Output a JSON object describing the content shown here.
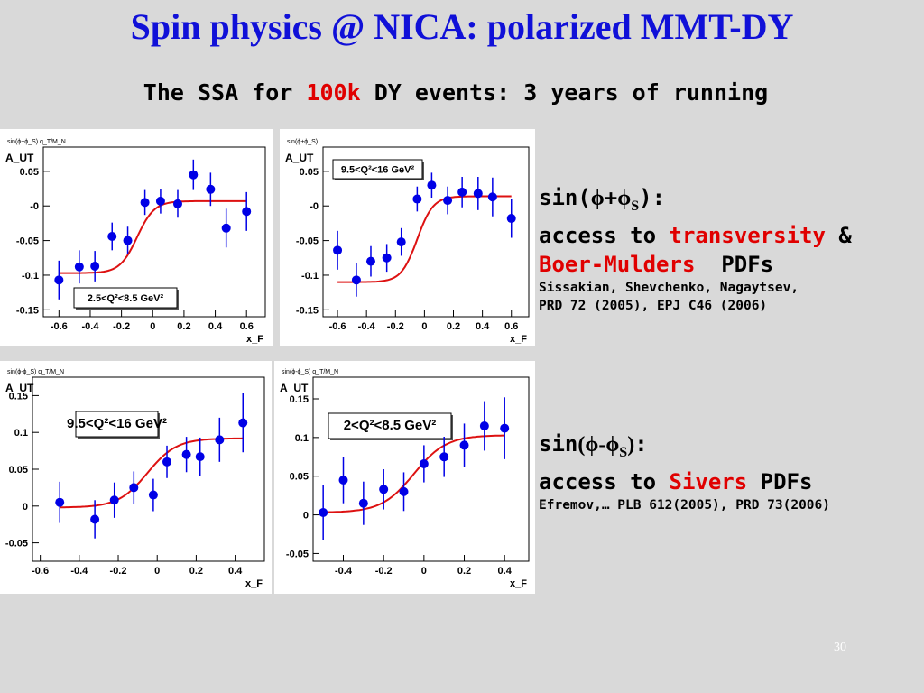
{
  "slide": {
    "title": "Spin physics @ NICA: polarized MMT-DY",
    "subtitle_pre": "The SSA for ",
    "subtitle_hl": "100k",
    "subtitle_post": " DY events: 3 years of running",
    "page_number": "30"
  },
  "note1": {
    "label_pre": "sin(",
    "phi": "ϕ",
    "plus": "+",
    "phi_s_base": "ϕ",
    "phi_s_sub": "S",
    "label_post": "):",
    "line2_pre": "access to ",
    "line2_hl": "transversity",
    "line2_post": " &",
    "line3_hl": "Boer-Mulders",
    "line3_post": "  PDFs",
    "ref1": "Sissakian, Shevchenko, Nagaytsev,",
    "ref2": "PRD 72 (2005), EPJ C46 (2006)"
  },
  "note2": {
    "label_pre": "sin",
    "label_mid": "(ϕ-ϕ",
    "label_sub": "S",
    "label_close": ")",
    "label_colon": ":",
    "line2_pre": "access to ",
    "line2_hl": "Sivers",
    "line2_post": " PDFs",
    "ref1": "Efremov,… PLB 612(2005), PRD 73(2006)"
  },
  "colors": {
    "title": "#1010d8",
    "highlight": "#e00000",
    "marker": "#0000e6",
    "fit": "#dd1111",
    "background": "#d9d9d9"
  },
  "chart_data": [
    {
      "type": "scatter",
      "weight_label": "sin(ϕ+ϕ_S) q_T/M_N",
      "ylabel": "A_UT",
      "xlabel": "x_F",
      "box_label": "2.5<Q²<8.5 GeV²",
      "xlim": [
        -0.7,
        0.72
      ],
      "ylim": [
        -0.16,
        0.085
      ],
      "xticks": [
        -0.6,
        -0.4,
        -0.2,
        0,
        0.2,
        0.4,
        0.6
      ],
      "xtick_labels": [
        "-0.6",
        "-0.4",
        "-0.2",
        "0",
        "0.2",
        "0.4",
        "0.6"
      ],
      "yticks": [
        -0.15,
        -0.1,
        -0.05,
        0,
        0.05
      ],
      "ytick_labels": [
        "-0.15",
        "-0.1",
        "-0.05",
        "-0",
        "0.05"
      ],
      "x": [
        -0.6,
        -0.47,
        -0.37,
        -0.26,
        -0.16,
        -0.05,
        0.05,
        0.16,
        0.26,
        0.37,
        0.47,
        0.6
      ],
      "y": [
        -0.107,
        -0.088,
        -0.087,
        -0.044,
        -0.05,
        0.005,
        0.007,
        0.003,
        0.045,
        0.024,
        -0.032,
        -0.008
      ],
      "err": [
        0.028,
        0.024,
        0.022,
        0.02,
        0.02,
        0.018,
        0.018,
        0.02,
        0.022,
        0.024,
        0.028,
        0.028
      ],
      "fit": {
        "a": -0.045,
        "b": 0.052,
        "c": 0.1,
        "w": 0.11
      }
    },
    {
      "type": "scatter",
      "weight_label": "sin(ϕ+ϕ_S)",
      "ylabel": "A_UT",
      "xlabel": "x_F",
      "box_label": "9.5<Q²<16 GeV²",
      "xlim": [
        -0.7,
        0.72
      ],
      "ylim": [
        -0.16,
        0.085
      ],
      "xticks": [
        -0.6,
        -0.4,
        -0.2,
        0,
        0.2,
        0.4,
        0.6
      ],
      "xtick_labels": [
        "-0.6",
        "-0.4",
        "-0.2",
        "0",
        "0.2",
        "0.4",
        "0.6"
      ],
      "yticks": [
        -0.15,
        -0.1,
        -0.05,
        0,
        0.05
      ],
      "ytick_labels": [
        "-0.15",
        "-0.1",
        "-0.05",
        "-0",
        "0.05"
      ],
      "x": [
        -0.6,
        -0.47,
        -0.37,
        -0.26,
        -0.16,
        -0.05,
        0.05,
        0.16,
        0.26,
        0.37,
        0.47,
        0.6
      ],
      "y": [
        -0.064,
        -0.107,
        -0.08,
        -0.075,
        -0.052,
        0.01,
        0.03,
        0.008,
        0.02,
        0.018,
        0.013,
        -0.018
      ],
      "err": [
        0.028,
        0.024,
        0.022,
        0.02,
        0.02,
        0.018,
        0.018,
        0.02,
        0.022,
        0.024,
        0.028,
        0.028
      ],
      "fit": {
        "a": -0.048,
        "b": 0.062,
        "c": 0.05,
        "w": 0.11
      }
    },
    {
      "type": "scatter",
      "weight_label": "sin(ϕ-ϕ_S) q_T/M_N",
      "ylabel": "A_UT",
      "xlabel": "x_F",
      "box_label": "9.5<Q²<16 GeV²",
      "xlim": [
        -0.64,
        0.55
      ],
      "ylim": [
        -0.075,
        0.175
      ],
      "xticks": [
        -0.6,
        -0.4,
        -0.2,
        0,
        0.2,
        0.4
      ],
      "xtick_labels": [
        "-0.6",
        "-0.4",
        "-0.2",
        "0",
        "0.2",
        "0.4"
      ],
      "yticks": [
        -0.05,
        0,
        0.05,
        0.1,
        0.15
      ],
      "ytick_labels": [
        "-0.05",
        "0",
        "0.05",
        "0.1",
        "0.15"
      ],
      "x": [
        -0.5,
        -0.32,
        -0.22,
        -0.12,
        -0.02,
        0.05,
        0.15,
        0.22,
        0.32,
        0.44
      ],
      "y": [
        0.005,
        -0.018,
        0.008,
        0.025,
        0.015,
        0.06,
        0.07,
        0.067,
        0.09,
        0.113
      ],
      "err": [
        0.028,
        0.026,
        0.024,
        0.022,
        0.022,
        0.022,
        0.024,
        0.026,
        0.03,
        0.04
      ],
      "fit": {
        "a": 0.045,
        "b": 0.047,
        "c": 0.05,
        "w": 0.15
      }
    },
    {
      "type": "scatter",
      "weight_label": "sin(ϕ-ϕ_S) q_T/M_N",
      "ylabel": "A_UT",
      "xlabel": "x_F",
      "box_label": "2<Q²<8.5 GeV²",
      "xlim": [
        -0.55,
        0.52
      ],
      "ylim": [
        -0.06,
        0.178
      ],
      "xticks": [
        -0.4,
        -0.2,
        0,
        0.2,
        0.4
      ],
      "xtick_labels": [
        "-0.4",
        "-0.2",
        "0",
        "0.2",
        "0.4"
      ],
      "yticks": [
        -0.05,
        0,
        0.05,
        0.1,
        0.15
      ],
      "ytick_labels": [
        "-0.05",
        "0",
        "0.05",
        "0.1",
        "0.15"
      ],
      "x": [
        -0.5,
        -0.4,
        -0.3,
        -0.2,
        -0.1,
        0.0,
        0.1,
        0.2,
        0.3,
        0.4
      ],
      "y": [
        0.003,
        0.045,
        0.015,
        0.033,
        0.03,
        0.066,
        0.075,
        0.09,
        0.115,
        0.112
      ],
      "err": [
        0.035,
        0.03,
        0.028,
        0.026,
        0.025,
        0.024,
        0.026,
        0.028,
        0.032,
        0.04
      ],
      "fit": {
        "a": 0.053,
        "b": 0.05,
        "c": 0.05,
        "w": 0.16
      }
    }
  ]
}
